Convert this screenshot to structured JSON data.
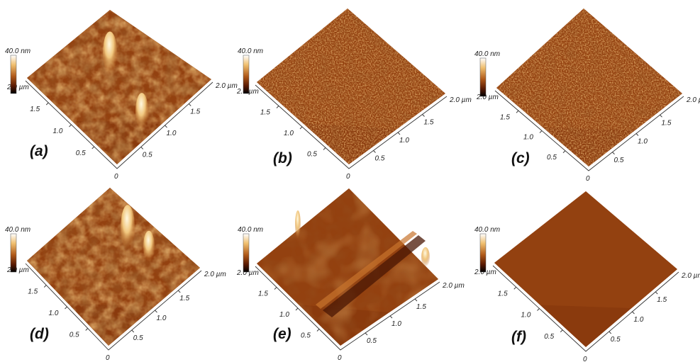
{
  "colorbar": {
    "max_label": "40.0 nm",
    "min_label": "2.0 µm"
  },
  "axis": {
    "right_end_label": "2.0 µm",
    "left_ticks": [
      "1.5",
      "1.0",
      "0.5"
    ],
    "right_ticks": [
      "0.5",
      "1.0",
      "1.5"
    ],
    "origin_label": "0"
  },
  "panels": [
    {
      "label": "(a)",
      "roughness": "high",
      "features": "large grains with two tall peaks"
    },
    {
      "label": "(b)",
      "roughness": "medium",
      "features": "fine uniform grains"
    },
    {
      "label": "(c)",
      "roughness": "medium",
      "features": "fine uniform grains"
    },
    {
      "label": "(d)",
      "roughness": "high",
      "features": "large grains with tall peaks"
    },
    {
      "label": "(e)",
      "roughness": "low",
      "features": "smooth with ridge and spikes"
    },
    {
      "label": "(f)",
      "roughness": "very low",
      "features": "very smooth surface"
    }
  ],
  "colors": {
    "surface_base": "#8a3a0d",
    "surface_light": "#d6813a",
    "surface_dark": "#5a1f04",
    "peak": "#fff2c8"
  }
}
